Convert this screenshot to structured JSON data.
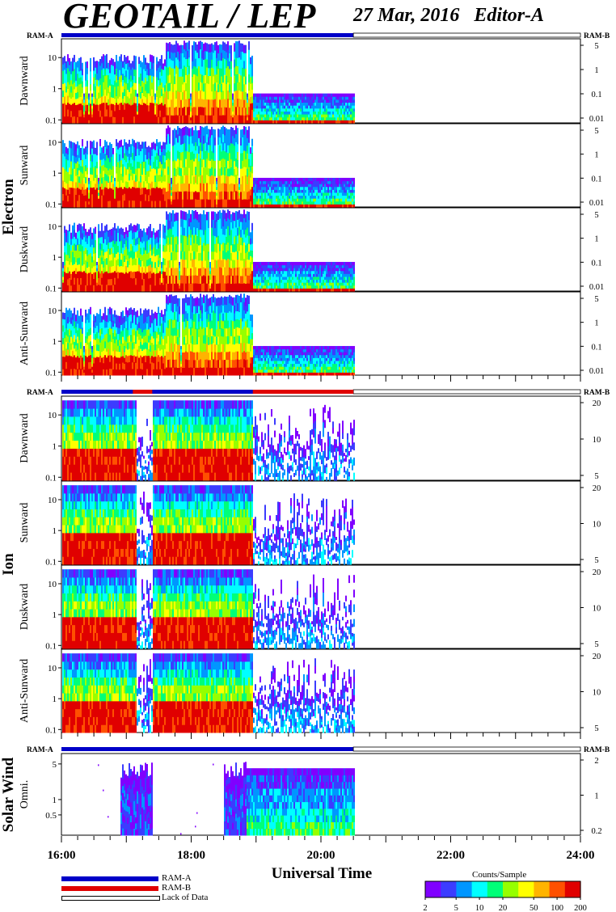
{
  "header": {
    "title": "GEOTAIL / LEP",
    "date": "27 Mar, 2016",
    "editor": "Editor-A"
  },
  "colors": {
    "ram_a": "#0000c8",
    "ram_b": "#e00000",
    "lack": "#ffffff",
    "colormap": [
      "#8000ff",
      "#3c3cff",
      "#0096ff",
      "#00ffff",
      "#00ff78",
      "#96ff00",
      "#ffff00",
      "#ffb400",
      "#ff5000",
      "#e00000"
    ]
  },
  "chart_data": {
    "type": "heatmap",
    "x_axis": {
      "label": "Universal Time",
      "range_hours": [
        16,
        24
      ],
      "tick_labels": [
        "16:00",
        "18:00",
        "20:00",
        "22:00",
        "24:00"
      ],
      "data_end_hour": 20.5
    },
    "groups": [
      {
        "name": "Electron",
        "ram_left": "RAM-A",
        "ram_right": "RAM-B",
        "y_range": [
          0.08,
          40
        ],
        "left_ticks": [
          "10",
          "1",
          "0.1"
        ],
        "right_ticks": [
          "5",
          "1",
          "0.1",
          "0.01"
        ],
        "panels": [
          "Dawnward",
          "Sunward",
          "Duskward",
          "Anti-Sunward"
        ]
      },
      {
        "name": "Ion",
        "ram_left": "RAM-A",
        "ram_right": "RAM-B",
        "y_range": [
          0.08,
          40
        ],
        "left_ticks": [
          "10",
          "1",
          "0.1"
        ],
        "right_ticks": [
          "20",
          "10",
          "5"
        ],
        "panels": [
          "Dawnward",
          "Sunward",
          "Duskward",
          "Anti-Sunward"
        ]
      },
      {
        "name": "Solar Wind",
        "ram_left": "RAM-A",
        "ram_right": "RAM-B",
        "y_range": [
          0.2,
          8
        ],
        "left_ticks": [
          "5",
          "1",
          "0.5"
        ],
        "right_ticks": [
          "2",
          "1",
          "0.2"
        ],
        "panels": [
          "Omni."
        ]
      }
    ],
    "colorbar": {
      "title": "Counts/Sample",
      "tick_labels": [
        "2",
        "5",
        "10",
        "20",
        "50",
        "100",
        "200"
      ],
      "range": [
        2,
        200
      ],
      "scale": "log"
    },
    "legend": [
      "RAM-A",
      "RAM-B",
      "Lack of Data"
    ]
  }
}
